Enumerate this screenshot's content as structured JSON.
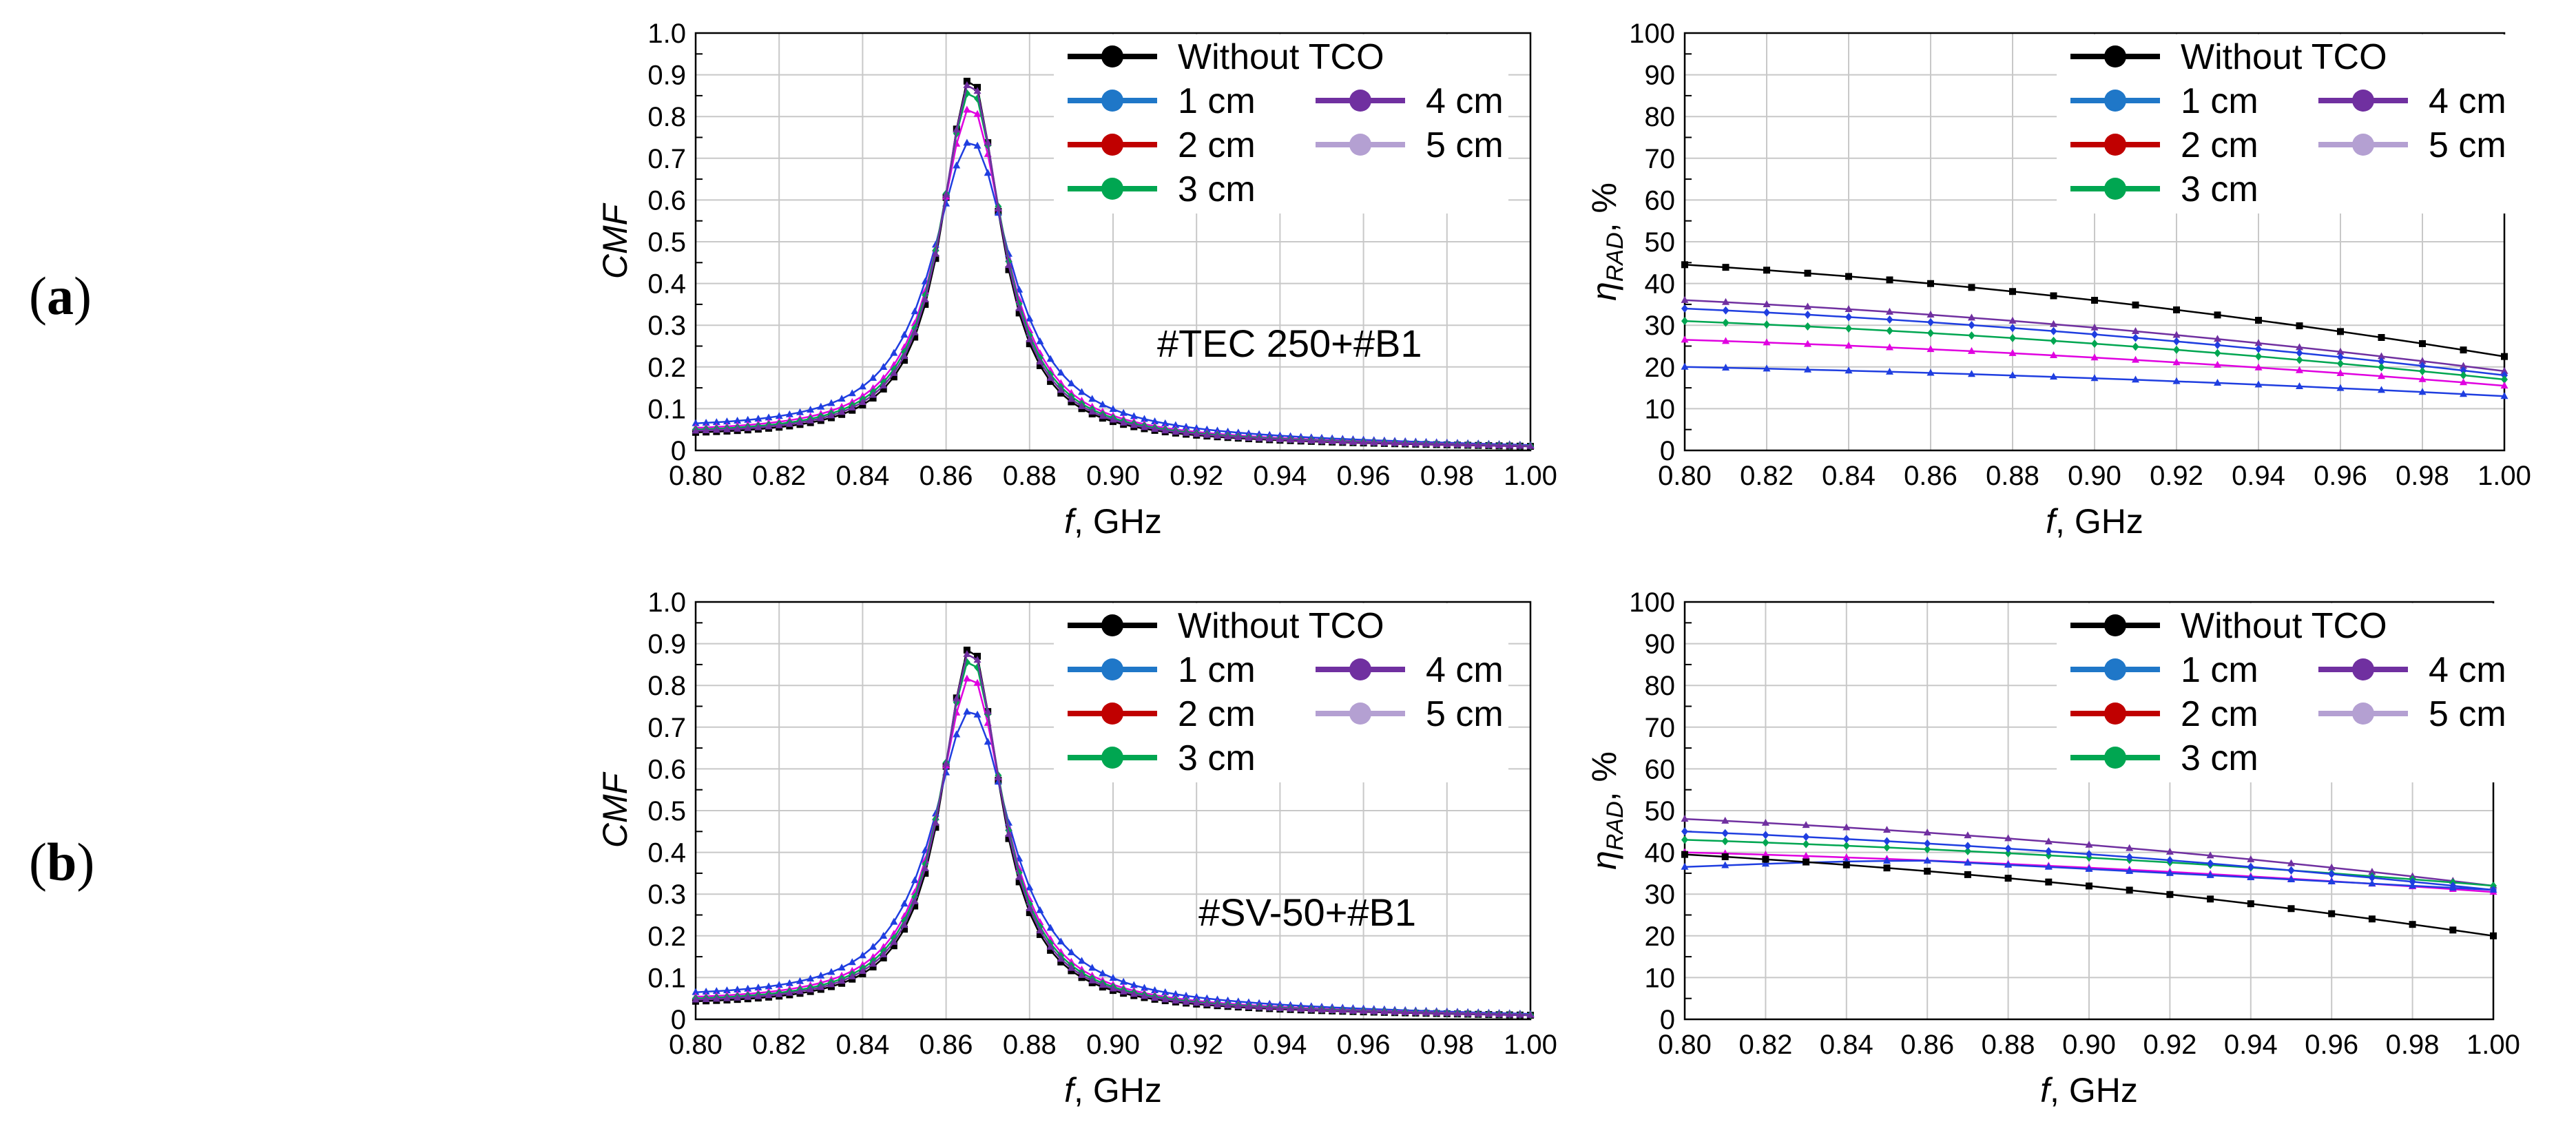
{
  "figure": {
    "panel_labels": [
      {
        "open": "(",
        "letter": "a",
        "close": ")"
      },
      {
        "open": "(",
        "letter": "b",
        "close": ")"
      }
    ]
  },
  "chart_data": [
    {
      "type": "line",
      "id": "a-left",
      "row": 0,
      "col": 0,
      "xlabel": "f, GHz",
      "xlabel_italic": "f",
      "xlabel_rest": ", GHz",
      "ylabel": "CMF",
      "ylabel_italic": true,
      "xlim": [
        0.8,
        1.0
      ],
      "ylim": [
        0,
        1.0
      ],
      "x_ticks": [
        0.8,
        0.82,
        0.84,
        0.86,
        0.88,
        0.9,
        0.92,
        0.94,
        0.96,
        0.98,
        1.0
      ],
      "x_tick_labels": [
        "0.80",
        "0.82",
        "0.84",
        "0.86",
        "0.88",
        "0.90",
        "0.92",
        "0.94",
        "0.96",
        "0.98",
        "1.00"
      ],
      "y_ticks": [
        0,
        0.1,
        0.2,
        0.3,
        0.4,
        0.5,
        0.6,
        0.7,
        0.8,
        0.9,
        1.0
      ],
      "y_tick_labels": [
        "0",
        "0.1",
        "0.2",
        "0.3",
        "0.4",
        "0.5",
        "0.6",
        "0.7",
        "0.8",
        "0.9",
        "1.0"
      ],
      "annotation": "#TEC 250+#B1",
      "legend": [
        "Without TCO",
        "1 cm",
        "2 cm",
        "3 cm",
        "4 cm",
        "5 cm"
      ],
      "legend_colors": [
        "#000000",
        "#1f77c8",
        "#c00000",
        "#00a651",
        "#7030a0",
        "#b4a0d2"
      ],
      "series": [
        {
          "name": "Without TCO",
          "color": "#000000",
          "marker": "square",
          "peak": 0.9,
          "f0": 0.866,
          "gamma": 0.0085,
          "base": 0.025
        },
        {
          "name": "1 cm",
          "color": "#1f3ee0",
          "marker": "triangle",
          "peak": 0.75,
          "f0": 0.866,
          "gamma": 0.0115,
          "base": 0.04
        },
        {
          "name": "2 cm",
          "color": "#e000e0",
          "marker": "triangle",
          "peak": 0.83,
          "f0": 0.866,
          "gamma": 0.0098,
          "base": 0.033
        },
        {
          "name": "3 cm",
          "color": "#00a651",
          "marker": "diamond",
          "peak": 0.87,
          "f0": 0.866,
          "gamma": 0.0092,
          "base": 0.03
        },
        {
          "name": "4 cm",
          "color": "#7030a0",
          "marker": "triangle",
          "peak": 0.89,
          "f0": 0.866,
          "gamma": 0.0088,
          "base": 0.028
        }
      ]
    },
    {
      "type": "line",
      "id": "a-right",
      "row": 0,
      "col": 1,
      "xlabel": "f, GHz",
      "xlabel_italic": "f",
      "xlabel_rest": ", GHz",
      "ylabel": "ηRAD, %",
      "ylabel_main": "η",
      "ylabel_sub": "RAD",
      "ylabel_rest": ", %",
      "xlim": [
        0.8,
        1.0
      ],
      "ylim": [
        0,
        100
      ],
      "x_ticks": [
        0.8,
        0.82,
        0.84,
        0.86,
        0.88,
        0.9,
        0.92,
        0.94,
        0.96,
        0.98,
        1.0
      ],
      "x_tick_labels": [
        "0.80",
        "0.82",
        "0.84",
        "0.86",
        "0.88",
        "0.90",
        "0.92",
        "0.94",
        "0.96",
        "0.98",
        "1.00"
      ],
      "y_ticks": [
        0,
        10,
        20,
        30,
        40,
        50,
        60,
        70,
        80,
        90,
        100
      ],
      "y_tick_labels": [
        "0",
        "10",
        "20",
        "30",
        "40",
        "50",
        "60",
        "70",
        "80",
        "90",
        "100"
      ],
      "legend": [
        "Without TCO",
        "1 cm",
        "2 cm",
        "3 cm",
        "4 cm",
        "5 cm"
      ],
      "legend_colors": [
        "#000000",
        "#1f77c8",
        "#c00000",
        "#00a651",
        "#7030a0",
        "#b4a0d2"
      ],
      "series": [
        {
          "name": "Without TCO",
          "color": "#000000",
          "marker": "square",
          "start": 44.5,
          "end": 22.5
        },
        {
          "name": "4 cm",
          "color": "#7030a0",
          "marker": "triangle",
          "start": 36,
          "end": 19
        },
        {
          "name": "5 cm",
          "color": "#1f3ee0",
          "marker": "diamond",
          "start": 34,
          "end": 18
        },
        {
          "name": "3 cm",
          "color": "#00a651",
          "marker": "diamond",
          "start": 31,
          "end": 17
        },
        {
          "name": "2 cm",
          "color": "#e000e0",
          "marker": "triangle",
          "start": 26.5,
          "end": 15.5
        },
        {
          "name": "1 cm",
          "color": "#1f3ee0",
          "marker": "triangle",
          "start": 20,
          "end": 13
        }
      ]
    },
    {
      "type": "line",
      "id": "b-left",
      "row": 1,
      "col": 0,
      "xlabel": "f, GHz",
      "xlabel_italic": "f",
      "xlabel_rest": ", GHz",
      "ylabel": "CMF",
      "ylabel_italic": true,
      "xlim": [
        0.8,
        1.0
      ],
      "ylim": [
        0,
        1.0
      ],
      "x_ticks": [
        0.8,
        0.82,
        0.84,
        0.86,
        0.88,
        0.9,
        0.92,
        0.94,
        0.96,
        0.98,
        1.0
      ],
      "x_tick_labels": [
        "0.80",
        "0.82",
        "0.84",
        "0.86",
        "0.88",
        "0.90",
        "0.92",
        "0.94",
        "0.96",
        "0.98",
        "1.00"
      ],
      "y_ticks": [
        0,
        0.1,
        0.2,
        0.3,
        0.4,
        0.5,
        0.6,
        0.7,
        0.8,
        0.9,
        1.0
      ],
      "y_tick_labels": [
        "0",
        "0.1",
        "0.2",
        "0.3",
        "0.4",
        "0.5",
        "0.6",
        "0.7",
        "0.8",
        "0.9",
        "1.0"
      ],
      "annotation": "#SV-50+#B1",
      "legend": [
        "Without TCO",
        "1 cm",
        "2 cm",
        "3 cm",
        "4 cm",
        "5 cm"
      ],
      "legend_colors": [
        "#000000",
        "#1f77c8",
        "#c00000",
        "#00a651",
        "#7030a0",
        "#b4a0d2"
      ],
      "series": [
        {
          "name": "Without TCO",
          "color": "#000000",
          "marker": "square",
          "peak": 0.9,
          "f0": 0.866,
          "gamma": 0.0085,
          "base": 0.025
        },
        {
          "name": "1 cm",
          "color": "#1f3ee0",
          "marker": "triangle",
          "peak": 0.75,
          "f0": 0.866,
          "gamma": 0.0115,
          "base": 0.04
        },
        {
          "name": "2 cm",
          "color": "#e000e0",
          "marker": "triangle",
          "peak": 0.83,
          "f0": 0.866,
          "gamma": 0.0098,
          "base": 0.033
        },
        {
          "name": "3 cm",
          "color": "#00a651",
          "marker": "diamond",
          "peak": 0.87,
          "f0": 0.866,
          "gamma": 0.0092,
          "base": 0.03
        },
        {
          "name": "4 cm",
          "color": "#7030a0",
          "marker": "triangle",
          "peak": 0.89,
          "f0": 0.866,
          "gamma": 0.0088,
          "base": 0.028
        }
      ]
    },
    {
      "type": "line",
      "id": "b-right",
      "row": 1,
      "col": 1,
      "xlabel": "f, GHz",
      "xlabel_italic": "f",
      "xlabel_rest": ", GHz",
      "ylabel": "ηRAD, %",
      "ylabel_main": "η",
      "ylabel_sub": "RAD",
      "ylabel_rest": ", %",
      "xlim": [
        0.8,
        1.0
      ],
      "ylim": [
        0,
        100
      ],
      "x_ticks": [
        0.8,
        0.82,
        0.84,
        0.86,
        0.88,
        0.9,
        0.92,
        0.94,
        0.96,
        0.98,
        1.0
      ],
      "x_tick_labels": [
        "0.80",
        "0.82",
        "0.84",
        "0.86",
        "0.88",
        "0.90",
        "0.92",
        "0.94",
        "0.96",
        "0.98",
        "1.00"
      ],
      "y_ticks": [
        0,
        10,
        20,
        30,
        40,
        50,
        60,
        70,
        80,
        90,
        100
      ],
      "y_tick_labels": [
        "0",
        "10",
        "20",
        "30",
        "40",
        "50",
        "60",
        "70",
        "80",
        "90",
        "100"
      ],
      "legend": [
        "Without TCO",
        "1 cm",
        "2 cm",
        "3 cm",
        "4 cm",
        "5 cm"
      ],
      "legend_colors": [
        "#000000",
        "#1f77c8",
        "#c00000",
        "#00a651",
        "#7030a0",
        "#b4a0d2"
      ],
      "series": [
        {
          "name": "4 cm",
          "color": "#7030a0",
          "marker": "triangle",
          "start": 48,
          "end": 32
        },
        {
          "name": "3 cm",
          "color": "#00a651",
          "marker": "diamond",
          "start": 43,
          "end": 32
        },
        {
          "name": "5 cm",
          "color": "#1f3ee0",
          "marker": "diamond",
          "start": 45,
          "end": 31
        },
        {
          "name": "2 cm",
          "color": "#e000e0",
          "marker": "triangle",
          "start": 40,
          "end": 30.5
        },
        {
          "name": "1 cm",
          "color": "#1f3ee0",
          "marker": "triangle",
          "start": 36.5,
          "end": 31,
          "shape": "hump"
        },
        {
          "name": "Without TCO",
          "color": "#000000",
          "marker": "square",
          "start": 39.5,
          "end": 20
        }
      ]
    }
  ]
}
